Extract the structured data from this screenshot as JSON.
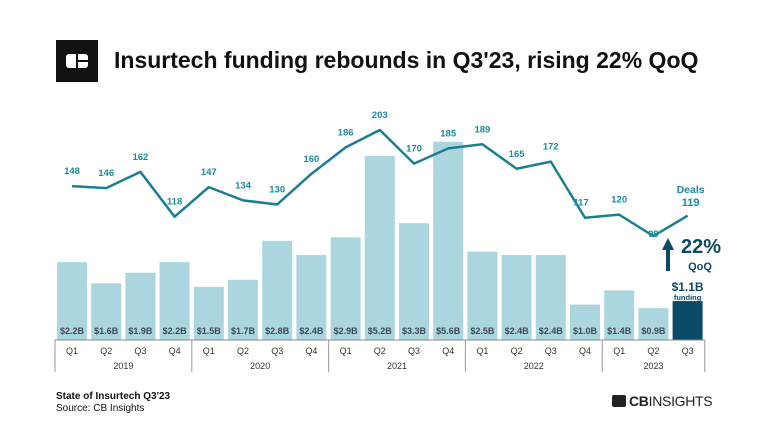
{
  "header": {
    "title": "Insurtech funding rebounds in Q3'23, rising 22% QoQ",
    "logo_text": "CB"
  },
  "footer": {
    "report": "State of Insurtech Q3'23",
    "source": "Source: CB Insights",
    "brand": "CBINSIGHTS"
  },
  "colors": {
    "bar": "#abd6df",
    "bar_highlight": "#0b4a66",
    "line": "#1a7f93",
    "label_line": "#1a8aa0",
    "bar_label": "#3d4a55"
  },
  "chart_data": {
    "type": "bar+line",
    "years": [
      "2019",
      "2020",
      "2021",
      "2022",
      "2023"
    ],
    "categories": [
      "Q1",
      "Q2",
      "Q3",
      "Q4",
      "Q1",
      "Q2",
      "Q3",
      "Q4",
      "Q1",
      "Q2",
      "Q3",
      "Q4",
      "Q1",
      "Q2",
      "Q3",
      "Q4",
      "Q1",
      "Q2",
      "Q3"
    ],
    "category_years": [
      "2019",
      "2019",
      "2019",
      "2019",
      "2020",
      "2020",
      "2020",
      "2020",
      "2021",
      "2021",
      "2021",
      "2021",
      "2022",
      "2022",
      "2022",
      "2022",
      "2023",
      "2023",
      "2023"
    ],
    "series": [
      {
        "name": "funding",
        "type": "bar",
        "unit": "$B",
        "values": [
          2.2,
          1.6,
          1.9,
          2.2,
          1.5,
          1.7,
          2.8,
          2.4,
          2.9,
          5.2,
          3.3,
          5.6,
          2.5,
          2.4,
          2.4,
          1.0,
          1.4,
          0.9,
          1.1
        ],
        "labels": [
          "$2.2B",
          "$1.6B",
          "$1.9B",
          "$2.2B",
          "$1.5B",
          "$1.7B",
          "$2.8B",
          "$2.4B",
          "$2.9B",
          "$5.2B",
          "$3.3B",
          "$5.6B",
          "$2.5B",
          "$2.4B",
          "$2.4B",
          "$1.0B",
          "$1.4B",
          "$0.9B",
          "$1.1B"
        ]
      },
      {
        "name": "Deals",
        "type": "line",
        "values": [
          148,
          146,
          162,
          118,
          147,
          134,
          130,
          160,
          186,
          203,
          170,
          185,
          189,
          165,
          172,
          117,
          120,
          99,
          119
        ]
      }
    ],
    "annotations": {
      "deals_label": "Deals",
      "growth": "22%",
      "growth_sub": "QoQ",
      "funding_callout": "$1.1B",
      "funding_sub": "funding",
      "arrow": "arrow-up-icon"
    },
    "grid": false
  }
}
